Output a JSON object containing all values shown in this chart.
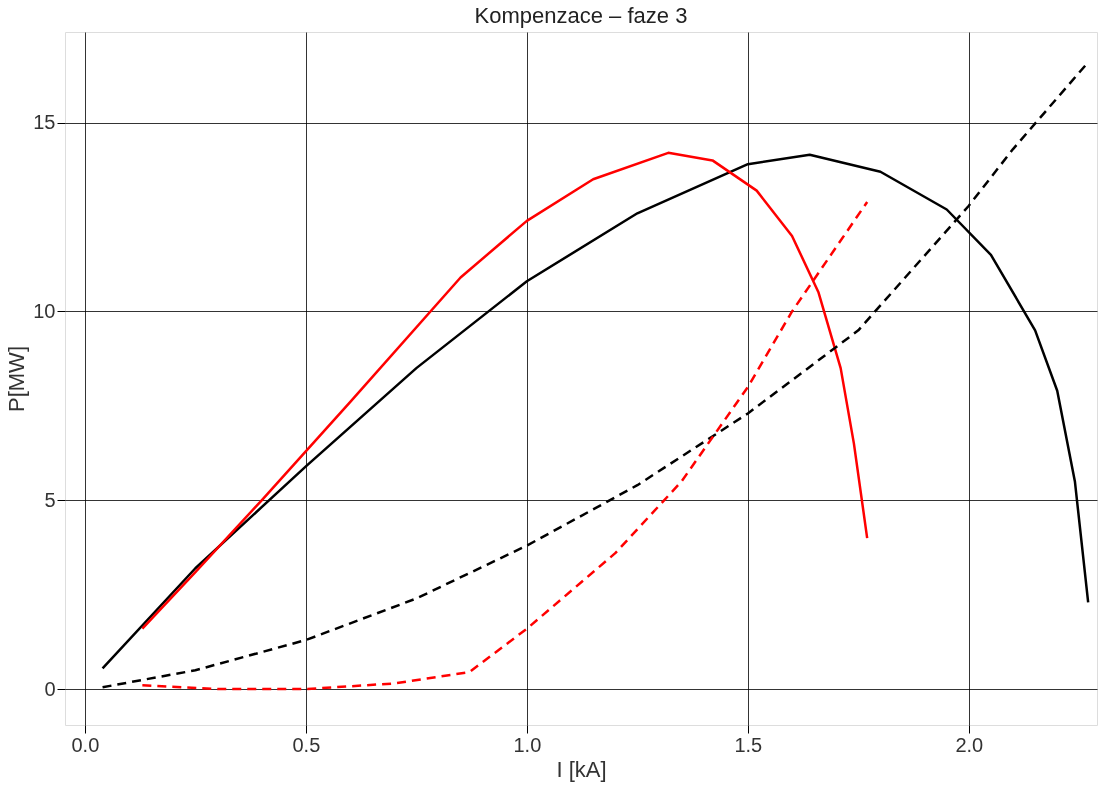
{
  "chart_data": {
    "type": "line",
    "title": "Kompenzace – faze 3",
    "xlabel": "I [kA]",
    "ylabel": "P[MW]",
    "xlim": [
      -0.045,
      2.29
    ],
    "ylim": [
      -0.95,
      17.4
    ],
    "xticks": [
      {
        "value": 0,
        "label": "0.0"
      },
      {
        "value": 0.5,
        "label": "0.5"
      },
      {
        "value": 1,
        "label": "1.0"
      },
      {
        "value": 1.5,
        "label": "1.5"
      },
      {
        "value": 2,
        "label": "2.0"
      }
    ],
    "yticks": [
      0,
      5,
      10,
      15
    ],
    "grid": true,
    "marker": "none",
    "series": [
      {
        "color": "#000000",
        "line_style": "solid",
        "x": [
          0.04,
          0.25,
          0.5,
          0.75,
          1.0,
          1.25,
          1.5,
          1.64,
          1.8,
          1.95,
          2.05,
          2.15,
          2.2,
          2.24,
          2.27
        ],
        "values": [
          0.55,
          3.2,
          5.9,
          8.5,
          10.8,
          12.6,
          13.9,
          14.15,
          13.7,
          12.7,
          11.5,
          9.5,
          7.9,
          5.5,
          2.3
        ]
      },
      {
        "color": "#ff0000",
        "line_style": "solid",
        "x": [
          0.13,
          0.25,
          0.4,
          0.6,
          0.85,
          1.0,
          1.15,
          1.32,
          1.42,
          1.52,
          1.6,
          1.66,
          1.71,
          1.74,
          1.77
        ],
        "values": [
          1.6,
          3.1,
          5.0,
          7.6,
          10.9,
          12.4,
          13.5,
          14.2,
          14.0,
          13.2,
          12.0,
          10.5,
          8.5,
          6.5,
          4.0
        ]
      },
      {
        "color": "#000000",
        "line_style": "dashed",
        "x": [
          0.04,
          0.25,
          0.5,
          0.75,
          1.0,
          1.25,
          1.5,
          1.75,
          2.0,
          2.1,
          2.27
        ],
        "values": [
          0.05,
          0.5,
          1.3,
          2.4,
          3.8,
          5.4,
          7.3,
          9.5,
          12.8,
          14.3,
          16.6
        ]
      },
      {
        "color": "#ff0000",
        "line_style": "dashed",
        "x": [
          0.13,
          0.3,
          0.5,
          0.7,
          0.87,
          1.0,
          1.2,
          1.35,
          1.5,
          1.6,
          1.77
        ],
        "values": [
          0.1,
          0.0,
          0.0,
          0.15,
          0.45,
          1.6,
          3.6,
          5.5,
          8.0,
          10.0,
          12.9
        ]
      }
    ]
  }
}
